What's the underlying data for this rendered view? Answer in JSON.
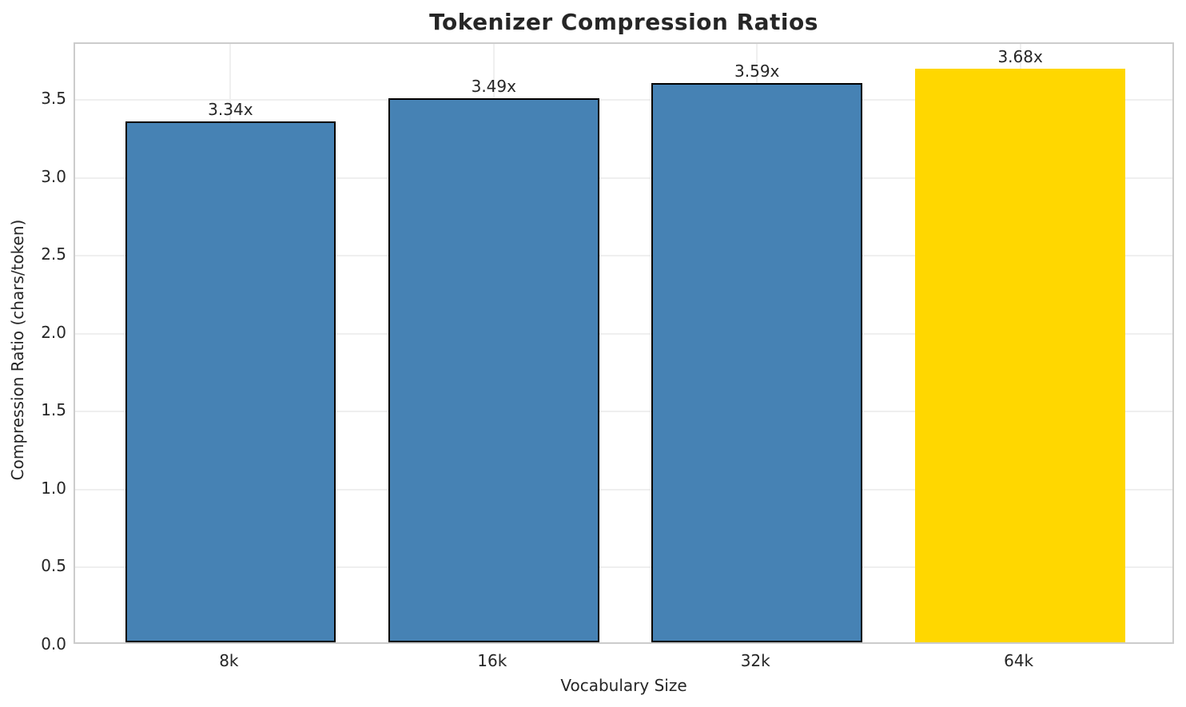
{
  "chart_data": {
    "type": "bar",
    "title": "Tokenizer Compression Ratios",
    "xlabel": "Vocabulary Size",
    "ylabel": "Compression Ratio (chars/token)",
    "categories": [
      "8k",
      "16k",
      "32k",
      "64k"
    ],
    "values": [
      3.34,
      3.49,
      3.59,
      3.68
    ],
    "bar_labels": [
      "3.34x",
      "3.49x",
      "3.59x",
      "3.68x"
    ],
    "bar_colors": [
      "#4682B4",
      "#4682B4",
      "#4682B4",
      "#FFD700"
    ],
    "bar_edge_colors": [
      "#000000",
      "#000000",
      "#000000",
      "none"
    ],
    "highlight_index": 3,
    "ylim": [
      0,
      3.86
    ],
    "yticks": [
      "0.0",
      "0.5",
      "1.0",
      "1.5",
      "2.0",
      "2.5",
      "3.0",
      "3.5"
    ],
    "grid": true,
    "legend_position": "none"
  },
  "colors": {
    "bar_default": "#4682B4",
    "bar_highlight": "#FFD700",
    "text": "#262626",
    "gridline": "#efefef",
    "spine": "#cccccc",
    "background": "#ffffff"
  }
}
